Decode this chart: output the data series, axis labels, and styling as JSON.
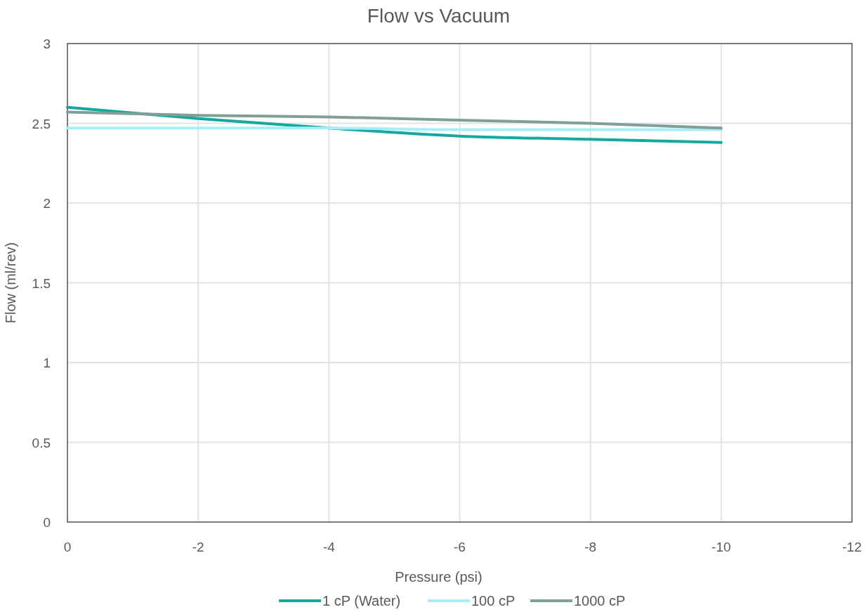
{
  "chart_data": {
    "type": "line",
    "title": "Flow vs Vacuum",
    "xlabel": "Pressure (psi)",
    "ylabel": "Flow (ml/rev)",
    "x": [
      0,
      -2,
      -4,
      -6,
      -8,
      -10
    ],
    "series": [
      {
        "name": "1 cP (Water)",
        "color": "#14a99e",
        "values": [
          2.6,
          2.53,
          2.47,
          2.42,
          2.4,
          2.38
        ]
      },
      {
        "name": "100 cP",
        "color": "#a8eef8",
        "values": [
          2.47,
          2.47,
          2.47,
          2.46,
          2.46,
          2.46
        ]
      },
      {
        "name": "1000 cP",
        "color": "#7f9f98",
        "values": [
          2.57,
          2.55,
          2.54,
          2.52,
          2.5,
          2.47
        ]
      }
    ],
    "xlim": [
      0,
      -12
    ],
    "xticks": [
      0,
      -2,
      -4,
      -6,
      -8,
      -10,
      -12
    ],
    "ylim": [
      0,
      3
    ],
    "yticks": [
      0,
      0.5,
      1,
      1.5,
      2,
      2.5,
      3
    ],
    "grid": true,
    "legend": "bottom",
    "marker": "none",
    "line_style": "solid"
  }
}
